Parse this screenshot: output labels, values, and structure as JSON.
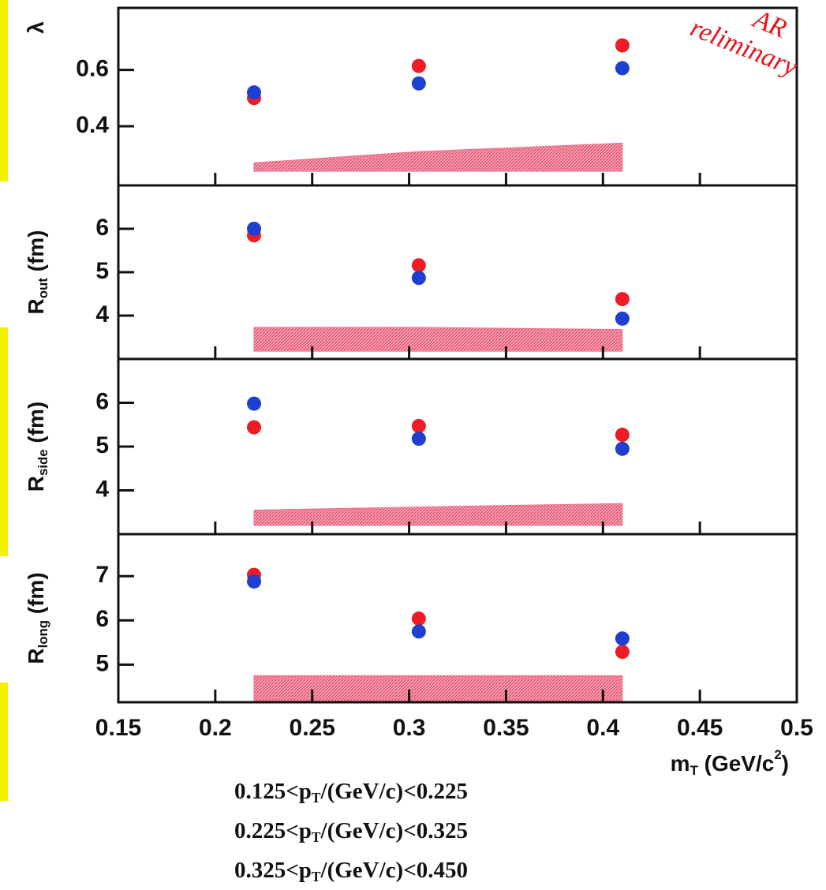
{
  "chart_data": [
    {
      "type": "scatter",
      "ylabel": {
        "main": "λ"
      },
      "x": [
        0.22,
        0.305,
        0.41
      ],
      "xlim": [
        0.15,
        0.5
      ],
      "ylim": [
        0.19,
        0.82
      ],
      "yticks": [
        0.4,
        0.6
      ],
      "series": [
        {
          "color": "#ee1c25",
          "values": [
            0.5,
            0.614,
            0.687
          ]
        },
        {
          "color": "#1f3fcf",
          "values": [
            0.52,
            0.552,
            0.606
          ]
        }
      ],
      "band": {
        "color": "#f0708e",
        "lower": [
          0.24,
          0.24,
          0.24
        ],
        "upper": [
          0.27,
          0.31,
          0.34
        ]
      }
    },
    {
      "type": "scatter",
      "ylabel": {
        "main": "R",
        "sub": "out",
        "rest": " (fm)"
      },
      "x": [
        0.22,
        0.305,
        0.41
      ],
      "xlim": [
        0.15,
        0.5
      ],
      "ylim": [
        3,
        7
      ],
      "yticks": [
        4,
        5,
        6
      ],
      "series": [
        {
          "color": "#ee1c25",
          "values": [
            5.85,
            5.16,
            4.38
          ]
        },
        {
          "color": "#1f3fcf",
          "values": [
            6.0,
            4.87,
            3.93
          ]
        }
      ],
      "band": {
        "color": "#f0708e",
        "lower": [
          3.18,
          3.18,
          3.18
        ],
        "upper": [
          3.73,
          3.73,
          3.68
        ]
      }
    },
    {
      "type": "scatter",
      "ylabel": {
        "main": "R",
        "sub": "side",
        "rest": " (fm)"
      },
      "x": [
        0.22,
        0.305,
        0.41
      ],
      "xlim": [
        0.15,
        0.5
      ],
      "ylim": [
        3,
        7
      ],
      "yticks": [
        4,
        5,
        6
      ],
      "series": [
        {
          "color": "#ee1c25",
          "values": [
            5.44,
            5.47,
            5.27
          ]
        },
        {
          "color": "#1f3fcf",
          "values": [
            5.98,
            5.18,
            4.95
          ]
        }
      ],
      "band": {
        "color": "#f0708e",
        "lower": [
          3.2,
          3.2,
          3.2
        ],
        "upper": [
          3.55,
          3.62,
          3.7
        ]
      }
    },
    {
      "type": "scatter",
      "ylabel": {
        "main": "R",
        "sub": "long",
        "rest": " (fm)"
      },
      "xlabel": {
        "main": "m",
        "sub": "T",
        "rest": " (GeV/c",
        "sup": "2",
        "end": ")"
      },
      "x": [
        0.22,
        0.305,
        0.41
      ],
      "xlim": [
        0.15,
        0.5
      ],
      "xticks": [
        0.15,
        0.2,
        0.25,
        0.3,
        0.35,
        0.4,
        0.45,
        0.5
      ],
      "ylim": [
        4.15,
        7.95
      ],
      "yticks": [
        5,
        6,
        7
      ],
      "series": [
        {
          "color": "#ee1c25",
          "values": [
            7.03,
            6.04,
            5.29
          ]
        },
        {
          "color": "#1f3fcf",
          "values": [
            6.88,
            5.75,
            5.59
          ]
        }
      ],
      "band": {
        "color": "#f0708e",
        "lower": [
          4.18,
          4.18,
          4.18
        ],
        "upper": [
          4.75,
          4.75,
          4.75
        ]
      }
    }
  ],
  "notes": [
    {
      "pre": "0.125<p",
      "sub": "T",
      "post": "/(GeV/c)<0.225"
    },
    {
      "pre": "0.225<p",
      "sub": "T",
      "post": "/(GeV/c)<0.325"
    },
    {
      "pre": "0.325<p",
      "sub": "T",
      "post": "/(GeV/c)<0.450"
    }
  ],
  "stamp": [
    "AR",
    "reliminary"
  ]
}
